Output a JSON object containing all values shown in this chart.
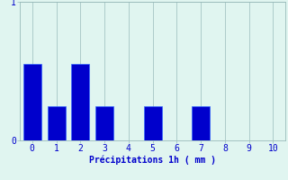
{
  "categories": [
    0,
    1,
    2,
    3,
    4,
    5,
    6,
    7,
    8,
    9,
    10
  ],
  "values": [
    0.55,
    0.25,
    0.55,
    0.25,
    0.0,
    0.25,
    0.0,
    0.25,
    0.0,
    0.0,
    0.0
  ],
  "bar_color": "#0000cc",
  "bar_edge_color": "#3366ff",
  "background_color": "#e0f5f0",
  "grid_color": "#99bbbb",
  "text_color": "#0000cc",
  "xlabel": "Précipitations 1h ( mm )",
  "ylim": [
    0,
    1.0
  ],
  "xlim": [
    -0.5,
    10.5
  ],
  "yticks": [
    0,
    1
  ],
  "xticks": [
    0,
    1,
    2,
    3,
    4,
    5,
    6,
    7,
    8,
    9,
    10
  ],
  "bar_width": 0.75,
  "label_fontsize": 7,
  "tick_fontsize": 7
}
